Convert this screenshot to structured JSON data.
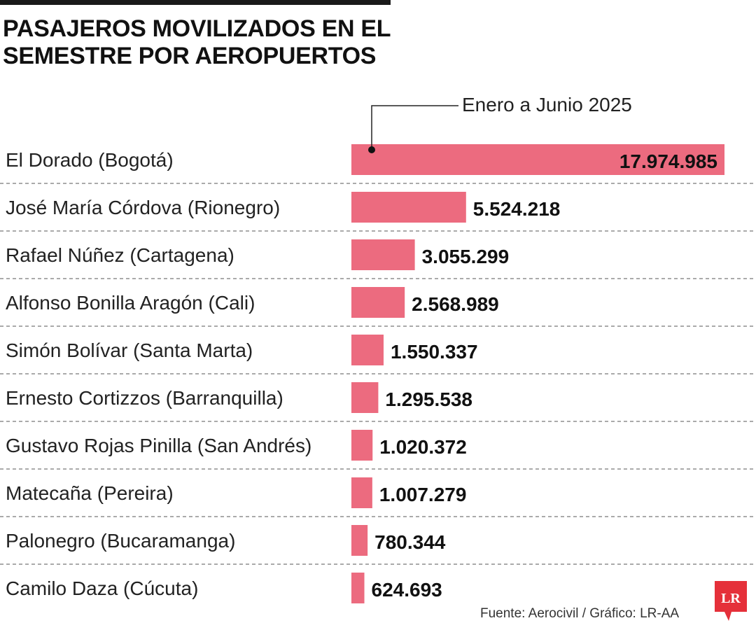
{
  "title_lines": [
    "PASAJEROS MOVILIZADOS EN EL",
    "SEMESTRE POR AEROPUERTOS"
  ],
  "source": "Fuente: Aerocivil / Gráfico: LR-AA",
  "logo_text": "LR",
  "colors": {
    "bar": "#ec6b7f",
    "logo": "#e5303a",
    "text": "#111111",
    "divider": "#777777"
  },
  "chart_data": {
    "type": "bar",
    "orientation": "horizontal",
    "legend_label": "Enero a Junio 2025",
    "categories": [
      "El Dorado (Bogotá)",
      "José María Córdova (Rionegro)",
      "Rafael Núñez (Cartagena)",
      "Alfonso Bonilla Aragón (Cali)",
      "Simón Bolívar (Santa Marta)",
      "Ernesto Cortizzos (Barranquilla)",
      "Gustavo Rojas Pinilla (San Andrés)",
      "Matecaña (Pereira)",
      "Palonegro (Bucaramanga)",
      "Camilo Daza (Cúcuta)"
    ],
    "values": [
      17974985,
      5524218,
      3055299,
      2568989,
      1550337,
      1295538,
      1020372,
      1007279,
      780344,
      624693
    ],
    "value_labels": [
      "17.974.985",
      "5.524.218",
      "3.055.299",
      "2.568.989",
      "1.550.337",
      "1.295.538",
      "1.020.372",
      "1.007.279",
      "780.344",
      "624.693"
    ],
    "xlim": [
      0,
      17974985
    ],
    "grid": false
  }
}
